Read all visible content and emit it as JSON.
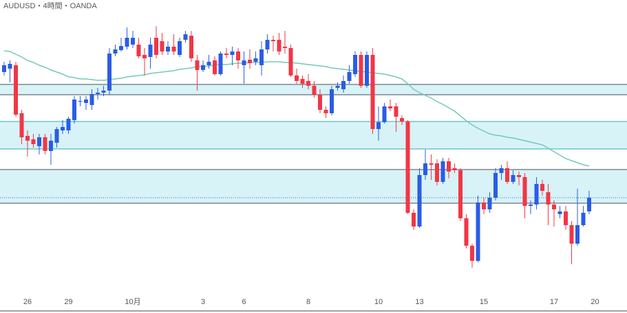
{
  "chart_data": {
    "type": "candlestick",
    "title": "AUDUSD・4時間・OANDA",
    "categories": [
      null,
      null,
      null,
      null,
      "26",
      null,
      null,
      null,
      null,
      null,
      null,
      "29",
      null,
      null,
      null,
      null,
      null,
      null,
      null,
      null,
      null,
      null,
      "10月",
      null,
      null,
      null,
      null,
      null,
      null,
      null,
      null,
      null,
      null,
      null,
      "3",
      null,
      null,
      null,
      null,
      null,
      null,
      "6",
      null,
      null,
      null,
      null,
      null,
      null,
      null,
      null,
      null,
      null,
      "8",
      null,
      null,
      null,
      null,
      null,
      null,
      null,
      null,
      null,
      null,
      null,
      "10",
      null,
      null,
      null,
      null,
      null,
      null,
      "13",
      null,
      null,
      null,
      null,
      null,
      null,
      null,
      null,
      null,
      null,
      "15",
      null,
      null,
      null,
      null,
      null,
      null,
      null,
      null,
      null,
      null,
      null,
      "17",
      null,
      null,
      null,
      null,
      null,
      null,
      "20"
    ],
    "open": [
      0.6845,
      0.685,
      0.6855,
      0.6785,
      0.6752,
      0.6747,
      0.6737,
      0.675,
      0.673,
      0.6742,
      0.676,
      0.676,
      0.6775,
      0.6802,
      0.68,
      0.6797,
      0.6813,
      0.6815,
      0.6818,
      0.6872,
      0.6877,
      0.6882,
      0.6885,
      0.6885,
      0.687,
      0.6867,
      0.6895,
      0.689,
      0.6875,
      0.6882,
      0.687,
      0.6892,
      0.6898,
      0.6862,
      0.6848,
      0.6855,
      0.6862,
      0.6842,
      0.6872,
      0.687,
      0.6875,
      0.6855,
      0.6863,
      0.686,
      0.6855,
      0.6878,
      0.6892,
      0.6892,
      0.6882,
      0.688,
      0.684,
      0.6835,
      0.6832,
      0.6825,
      0.6812,
      0.679,
      0.6785,
      0.6822,
      0.682,
      0.6832,
      0.6842,
      0.687,
      0.6825,
      0.687,
      0.6762,
      0.6772,
      0.6795,
      0.6795,
      0.6778,
      0.6773,
      0.664,
      0.662,
      0.6695,
      0.6712,
      0.6712,
      0.6685,
      0.6715,
      0.6705,
      0.6702,
      0.6632,
      0.6592,
      0.657,
      0.6655,
      0.6645,
      0.6662,
      0.6698,
      0.6705,
      0.6685,
      0.6695,
      0.6692,
      0.665,
      0.6652,
      0.6682,
      0.667,
      0.6652,
      0.6638,
      0.6642,
      0.6622,
      0.6595,
      0.6622,
      0.6642,
      null
    ],
    "high": [
      0.686,
      0.6862,
      0.686,
      0.679,
      0.676,
      0.6755,
      0.6755,
      0.6755,
      0.6755,
      0.6765,
      0.6775,
      0.678,
      0.681,
      0.681,
      0.681,
      0.682,
      0.6822,
      0.6825,
      0.688,
      0.6885,
      0.6895,
      0.691,
      0.6905,
      0.6895,
      0.688,
      0.6895,
      0.6912,
      0.6902,
      0.689,
      0.69,
      0.6895,
      0.6905,
      0.6905,
      0.687,
      0.6862,
      0.687,
      0.6868,
      0.6875,
      0.688,
      0.6882,
      0.688,
      0.6875,
      0.6878,
      0.6875,
      0.689,
      0.69,
      0.6898,
      0.6902,
      0.6905,
      0.6885,
      0.685,
      0.684,
      0.6842,
      0.6832,
      0.682,
      0.6795,
      0.6825,
      0.683,
      0.684,
      0.6855,
      0.6875,
      0.6875,
      0.6875,
      0.688,
      0.6795,
      0.68,
      0.6805,
      0.68,
      0.6782,
      0.6775,
      0.6645,
      0.6705,
      0.6732,
      0.6725,
      0.6718,
      0.672,
      0.672,
      0.6712,
      0.6705,
      0.6638,
      0.6595,
      0.6665,
      0.6662,
      0.667,
      0.6705,
      0.671,
      0.6715,
      0.6702,
      0.67,
      0.6698,
      0.6658,
      0.6692,
      0.6688,
      0.6682,
      0.6658,
      0.665,
      0.665,
      0.6628,
      0.6675,
      0.665,
      0.6672,
      null
    ],
    "low": [
      0.684,
      0.683,
      0.678,
      0.674,
      0.6722,
      0.6735,
      0.6725,
      0.6725,
      0.671,
      0.6735,
      0.6755,
      0.6755,
      0.677,
      0.6795,
      0.679,
      0.679,
      0.6805,
      0.681,
      0.6812,
      0.6868,
      0.6875,
      0.6878,
      0.688,
      0.6865,
      0.684,
      0.685,
      0.6865,
      0.687,
      0.687,
      0.687,
      0.6867,
      0.6888,
      0.686,
      0.6818,
      0.6845,
      0.685,
      0.684,
      0.684,
      0.6865,
      0.6855,
      0.685,
      0.6828,
      0.685,
      0.6855,
      0.684,
      0.6872,
      0.6875,
      0.687,
      0.6872,
      0.6838,
      0.6828,
      0.6822,
      0.682,
      0.6808,
      0.6785,
      0.6778,
      0.6782,
      0.6818,
      0.6815,
      0.6828,
      0.6838,
      0.6822,
      0.6822,
      0.6755,
      0.6745,
      0.677,
      0.6788,
      0.6758,
      0.6768,
      0.6638,
      0.6615,
      0.6618,
      0.6688,
      0.6688,
      0.668,
      0.6682,
      0.669,
      0.6698,
      0.6628,
      0.6588,
      0.656,
      0.6568,
      0.6638,
      0.664,
      0.6658,
      0.6688,
      0.6682,
      0.6682,
      0.668,
      0.6632,
      0.6638,
      0.6645,
      0.6665,
      0.6622,
      0.662,
      0.6632,
      0.6615,
      0.6565,
      0.6592,
      0.662,
      0.6638,
      null
    ],
    "close": [
      0.6855,
      0.6857,
      0.6783,
      0.675,
      0.6745,
      0.674,
      0.675,
      0.673,
      0.6745,
      0.6762,
      0.6765,
      0.6777,
      0.6805,
      0.6803,
      0.6805,
      0.6813,
      0.6815,
      0.6818,
      0.6872,
      0.6878,
      0.6883,
      0.6895,
      0.6895,
      0.6868,
      0.6865,
      0.6885,
      0.687,
      0.6875,
      0.6882,
      0.6875,
      0.689,
      0.69,
      0.6865,
      0.6848,
      0.6855,
      0.686,
      0.6842,
      0.6872,
      0.687,
      0.6875,
      0.6862,
      0.6862,
      0.6858,
      0.6865,
      0.6878,
      0.6892,
      0.689,
      0.6875,
      0.688,
      0.684,
      0.6832,
      0.6828,
      0.6825,
      0.6812,
      0.679,
      0.6785,
      0.682,
      0.6825,
      0.6832,
      0.6845,
      0.687,
      0.6825,
      0.687,
      0.6762,
      0.6772,
      0.6795,
      0.6792,
      0.678,
      0.6773,
      0.664,
      0.662,
      0.6695,
      0.6712,
      0.671,
      0.6685,
      0.6715,
      0.67,
      0.6702,
      0.6632,
      0.6592,
      0.657,
      0.6655,
      0.6645,
      0.6662,
      0.6698,
      0.6705,
      0.6685,
      0.6695,
      0.6692,
      0.665,
      0.6652,
      0.6682,
      0.6672,
      0.6652,
      0.6645,
      0.6642,
      0.6622,
      0.6595,
      0.6622,
      0.664,
      0.6662,
      null
    ],
    "moving_average": {
      "color": "#72c9ba",
      "values": [
        0.6876,
        0.6875,
        0.6871,
        0.6867,
        0.6862,
        0.6859,
        0.6855,
        0.6852,
        0.6848,
        0.6845,
        0.6842,
        0.6838,
        0.6837,
        0.6835,
        0.6835,
        0.6834,
        0.6833,
        0.6833,
        0.6834,
        0.6835,
        0.6836,
        0.6838,
        0.6839,
        0.684,
        0.6841,
        0.6843,
        0.6844,
        0.6845,
        0.6846,
        0.6847,
        0.6849,
        0.685,
        0.6851,
        0.6853,
        0.6853,
        0.6854,
        0.6855,
        0.6856,
        0.6856,
        0.6857,
        0.6858,
        0.6858,
        0.6859,
        0.6859,
        0.6859,
        0.686,
        0.686,
        0.686,
        0.6859,
        0.6859,
        0.6858,
        0.6857,
        0.6856,
        0.6855,
        0.6854,
        0.6853,
        0.6851,
        0.685,
        0.6849,
        0.6848,
        0.6847,
        0.6846,
        0.6845,
        0.6844,
        0.6843,
        0.6842,
        0.684,
        0.6838,
        0.6835,
        0.6828,
        0.682,
        0.6815,
        0.6811,
        0.6807,
        0.6802,
        0.6798,
        0.6793,
        0.6788,
        0.6781,
        0.6774,
        0.6768,
        0.6763,
        0.6759,
        0.6755,
        0.6753,
        0.6752,
        0.675,
        0.6749,
        0.6747,
        0.6745,
        0.6743,
        0.6741,
        0.6739,
        0.6734,
        0.6729,
        0.6724,
        0.6719,
        0.6716,
        0.6713,
        0.671,
        0.6708,
        null
      ]
    },
    "zones": [
      {
        "from": 0.6812,
        "to": 0.6827,
        "border": "#808591"
      },
      {
        "from": 0.6733,
        "to": 0.6773,
        "border": "#6cc8cc"
      },
      {
        "from": 0.6654,
        "to": 0.6703,
        "border": "#808591"
      }
    ],
    "zone_fill": "#d7f3f7",
    "current_price": 0.6662,
    "up_color": "#2b5ce6",
    "down_color": "#f23645",
    "ylim": [
      0.6522,
      0.695
    ]
  }
}
